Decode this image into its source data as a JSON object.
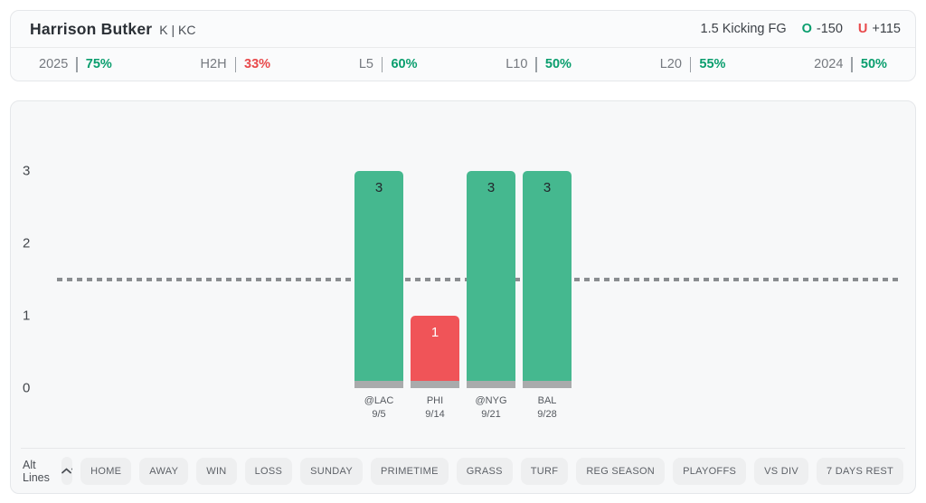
{
  "colors": {
    "green": "#0a9e6e",
    "red": "#e8494b",
    "bar_over": "#45b88f",
    "bar_under": "#f05458",
    "bar_base": "#a9abac",
    "dash_line": "#8a8d90"
  },
  "header": {
    "player_name": "Harrison Butker",
    "player_meta": "K | KC",
    "market": "1.5 Kicking FG",
    "over_letter": "O",
    "over_odds": "-150",
    "under_letter": "U",
    "under_odds": "+115",
    "splits": [
      {
        "label": "2025",
        "value": "75%",
        "color": "green"
      },
      {
        "label": "H2H",
        "value": "33%",
        "color": "red"
      },
      {
        "label": "L5",
        "value": "60%",
        "color": "green"
      },
      {
        "label": "L10",
        "value": "50%",
        "color": "green"
      },
      {
        "label": "L20",
        "value": "55%",
        "color": "green"
      },
      {
        "label": "2024",
        "value": "50%",
        "color": "green"
      }
    ]
  },
  "chart_data": {
    "type": "bar",
    "title": "",
    "xlabel": "",
    "ylabel": "",
    "categories": [
      "@LAC",
      "PHI",
      "@NYG",
      "BAL"
    ],
    "category_dates": [
      "9/5",
      "9/14",
      "9/21",
      "9/28"
    ],
    "values": [
      3,
      1,
      3,
      3
    ],
    "betting_line": 1.5,
    "ylim": [
      0,
      3
    ],
    "yticks": [
      3,
      2,
      1,
      0
    ],
    "grid": false,
    "legend": "none"
  },
  "filters": {
    "alt_lines_label": "Alt Lines",
    "chips": [
      "HOME",
      "AWAY",
      "WIN",
      "LOSS",
      "SUNDAY",
      "PRIMETIME",
      "GRASS",
      "TURF",
      "REG SEASON",
      "PLAYOFFS",
      "VS DIV",
      "7 DAYS REST"
    ]
  }
}
